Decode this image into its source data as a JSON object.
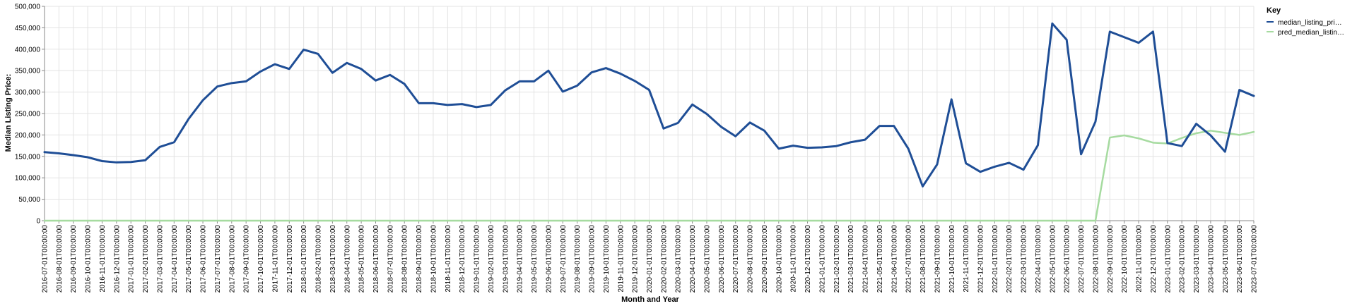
{
  "chart_data": {
    "type": "line",
    "xlabel": "Month and Year",
    "ylabel": "Median Listing Price:",
    "ylim": [
      0,
      500000
    ],
    "yticks": [
      "0",
      "50,000",
      "100,000",
      "150,000",
      "200,000",
      "250,000",
      "300,000",
      "350,000",
      "400,000",
      "450,000",
      "500,000"
    ],
    "grid": true,
    "legend": {
      "title": "Key",
      "placement": "top-right"
    },
    "x": [
      "2016-07-01T00:00:00",
      "2016-08-01T00:00:00",
      "2016-09-01T00:00:00",
      "2016-10-01T00:00:00",
      "2016-11-01T00:00:00",
      "2016-12-01T00:00:00",
      "2017-01-01T00:00:00",
      "2017-02-01T00:00:00",
      "2017-03-01T00:00:00",
      "2017-04-01T00:00:00",
      "2017-05-01T00:00:00",
      "2017-06-01T00:00:00",
      "2017-07-01T00:00:00",
      "2017-08-01T00:00:00",
      "2017-09-01T00:00:00",
      "2017-10-01T00:00:00",
      "2017-11-01T00:00:00",
      "2017-12-01T00:00:00",
      "2018-01-01T00:00:00",
      "2018-02-01T00:00:00",
      "2018-03-01T00:00:00",
      "2018-04-01T00:00:00",
      "2018-05-01T00:00:00",
      "2018-06-01T00:00:00",
      "2018-07-01T00:00:00",
      "2018-08-01T00:00:00",
      "2018-09-01T00:00:00",
      "2018-10-01T00:00:00",
      "2018-11-01T00:00:00",
      "2018-12-01T00:00:00",
      "2019-01-01T00:00:00",
      "2019-02-01T00:00:00",
      "2019-03-01T00:00:00",
      "2019-04-01T00:00:00",
      "2019-05-01T00:00:00",
      "2019-06-01T00:00:00",
      "2019-07-01T00:00:00",
      "2019-08-01T00:00:00",
      "2019-09-01T00:00:00",
      "2019-10-01T00:00:00",
      "2019-11-01T00:00:00",
      "2019-12-01T00:00:00",
      "2020-01-01T00:00:00",
      "2020-02-01T00:00:00",
      "2020-03-01T00:00:00",
      "2020-04-01T00:00:00",
      "2020-05-01T00:00:00",
      "2020-06-01T00:00:00",
      "2020-07-01T00:00:00",
      "2020-08-01T00:00:00",
      "2020-09-01T00:00:00",
      "2020-10-01T00:00:00",
      "2020-11-01T00:00:00",
      "2020-12-01T00:00:00",
      "2021-01-01T00:00:00",
      "2021-02-01T00:00:00",
      "2021-03-01T00:00:00",
      "2021-04-01T00:00:00",
      "2021-05-01T00:00:00",
      "2021-06-01T00:00:00",
      "2021-07-01T00:00:00",
      "2021-08-01T00:00:00",
      "2021-09-01T00:00:00",
      "2021-10-01T00:00:00",
      "2021-11-01T00:00:00",
      "2021-12-01T00:00:00",
      "2022-01-01T00:00:00",
      "2022-02-01T00:00:00",
      "2022-03-01T00:00:00",
      "2022-04-01T00:00:00",
      "2022-05-01T00:00:00",
      "2022-06-01T00:00:00",
      "2022-07-01T00:00:00",
      "2022-08-01T00:00:00",
      "2022-09-01T00:00:00",
      "2022-10-01T00:00:00",
      "2022-11-01T00:00:00",
      "2022-12-01T00:00:00",
      "2023-01-01T00:00:00",
      "2023-02-01T00:00:00",
      "2023-03-01T00:00:00",
      "2023-04-01T00:00:00",
      "2023-05-01T00:00:00",
      "2023-06-01T00:00:00",
      "2023-07-01T00:00:00"
    ],
    "series": [
      {
        "name": "median_listing_pri…",
        "color": "#1f4e96",
        "values": [
          160000,
          157000,
          153000,
          148000,
          139000,
          136000,
          137000,
          141000,
          172000,
          183000,
          237000,
          281000,
          313000,
          321000,
          325000,
          348000,
          365000,
          354000,
          399000,
          389000,
          345000,
          368000,
          354000,
          327000,
          340000,
          319000,
          274000,
          274000,
          270000,
          272000,
          265000,
          270000,
          304000,
          325000,
          325000,
          350000,
          301000,
          315000,
          346000,
          356000,
          343000,
          326000,
          305000,
          215000,
          228000,
          271000,
          249000,
          219000,
          197000,
          229000,
          210000,
          168000,
          175000,
          170000,
          171000,
          174000,
          183000,
          189000,
          221000,
          221000,
          168000,
          80000,
          131000,
          283000,
          134000,
          114000,
          126000,
          135000,
          119000,
          176000,
          460000,
          422000,
          155000,
          231000,
          441000,
          428000,
          415000,
          441000,
          181000,
          174000,
          226000,
          199000,
          161000,
          305000,
          291000
        ]
      },
      {
        "name": "pred_median_listin…",
        "color": "#a6dba0",
        "values": [
          0,
          0,
          0,
          0,
          0,
          0,
          0,
          0,
          0,
          0,
          0,
          0,
          0,
          0,
          0,
          0,
          0,
          0,
          0,
          0,
          0,
          0,
          0,
          0,
          0,
          0,
          0,
          0,
          0,
          0,
          0,
          0,
          0,
          0,
          0,
          0,
          0,
          0,
          0,
          0,
          0,
          0,
          0,
          0,
          0,
          0,
          0,
          0,
          0,
          0,
          0,
          0,
          0,
          0,
          0,
          0,
          0,
          0,
          0,
          0,
          0,
          0,
          0,
          0,
          0,
          0,
          0,
          0,
          0,
          0,
          0,
          0,
          0,
          0,
          194000,
          199000,
          192000,
          182000,
          180000,
          193000,
          204000,
          210000,
          205000,
          200000,
          207000
        ]
      }
    ]
  }
}
